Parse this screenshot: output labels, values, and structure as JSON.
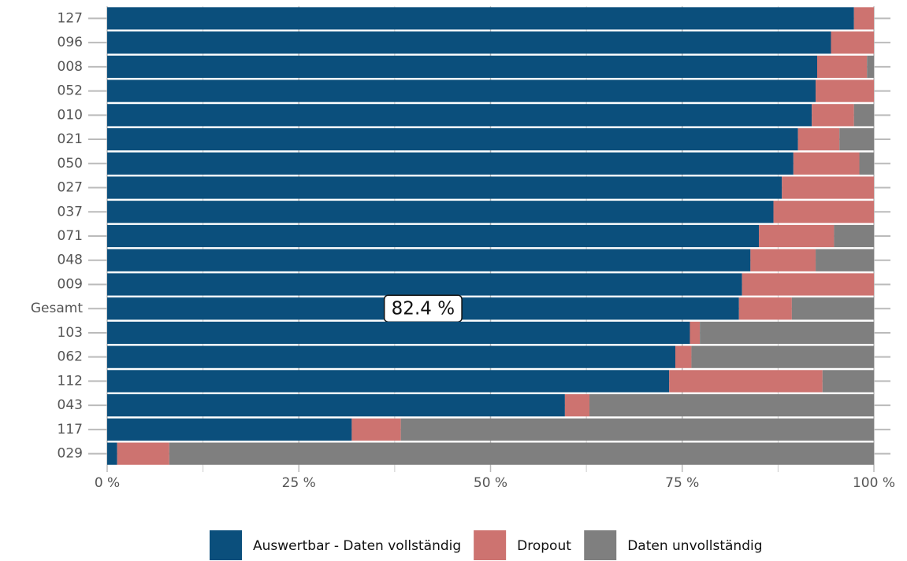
{
  "chart_data": {
    "type": "stacked-barh",
    "categories": [
      "127",
      "096",
      "008",
      "052",
      "010",
      "021",
      "050",
      "027",
      "037",
      "071",
      "048",
      "009",
      "Gesamt",
      "103",
      "062",
      "112",
      "043",
      "117",
      "029"
    ],
    "series": [
      {
        "name": "Auswertbar - Daten vollständig",
        "color": "#0b4f7c",
        "values": [
          97.4,
          94.4,
          92.6,
          92.4,
          91.9,
          90.1,
          89.5,
          88.0,
          86.9,
          85.0,
          83.9,
          82.8,
          82.4,
          76.0,
          74.1,
          73.3,
          59.7,
          31.9,
          1.3
        ],
        "value_labels": [
          null,
          null,
          null,
          null,
          null,
          null,
          null,
          null,
          null,
          null,
          null,
          null,
          "82.4 %",
          null,
          null,
          null,
          null,
          null,
          null
        ]
      },
      {
        "name": "Dropout",
        "color": "#cd7370",
        "values": [
          2.6,
          5.6,
          6.5,
          7.6,
          5.5,
          5.4,
          8.6,
          12.0,
          13.1,
          9.8,
          8.5,
          17.2,
          6.9,
          1.3,
          2.1,
          20.0,
          3.2,
          6.4,
          6.8
        ]
      },
      {
        "name": "Daten unvollständig",
        "color": "#7f7f7f",
        "values": [
          0,
          0,
          0.9,
          0,
          2.6,
          4.5,
          1.9,
          0,
          0,
          5.2,
          7.6,
          0,
          10.7,
          22.7,
          23.8,
          6.7,
          37.1,
          61.7,
          91.9
        ]
      }
    ],
    "xlim": [
      0,
      100
    ],
    "xticks": [
      {
        "value": 0,
        "label": "0 %"
      },
      {
        "value": 25,
        "label": "25 %"
      },
      {
        "value": 50,
        "label": "50 %"
      },
      {
        "value": 75,
        "label": "75 %"
      },
      {
        "value": 100,
        "label": "100 %"
      }
    ],
    "grid": true,
    "legend": "bottom"
  }
}
